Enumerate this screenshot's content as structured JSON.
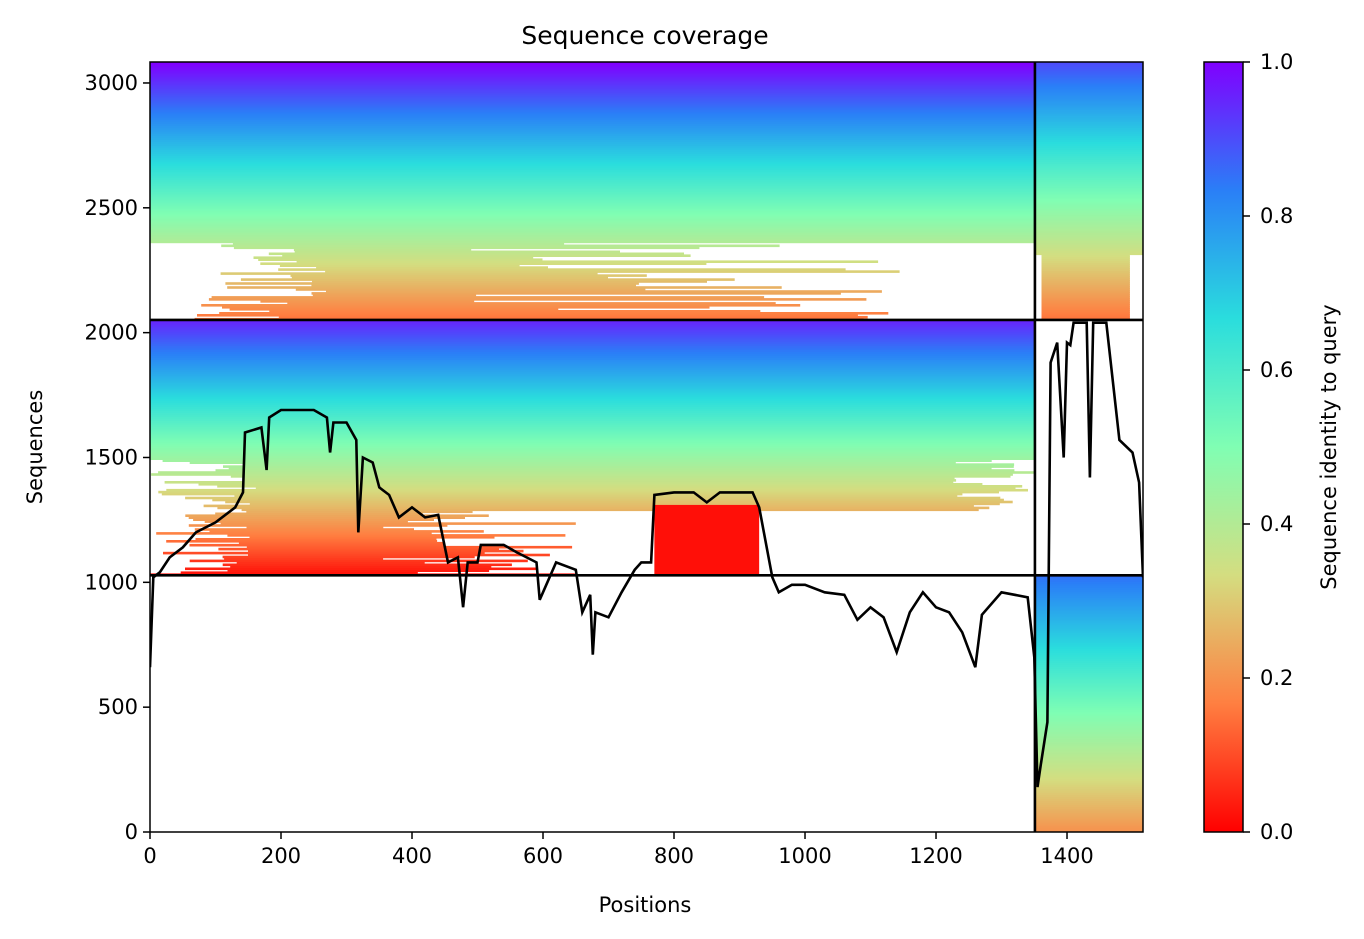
{
  "chart_data": {
    "type": "heatmap",
    "title": "Sequence coverage",
    "xlabel": "Positions",
    "ylabel": "Sequences",
    "colorbar_label": "Sequence identity to query",
    "colormap": "rainbow_r",
    "xlim": [
      0,
      1516
    ],
    "ylim": [
      0,
      3084
    ],
    "x_ticks": [
      0,
      200,
      400,
      600,
      800,
      1000,
      1200,
      1400
    ],
    "y_ticks": [
      0,
      500,
      1000,
      1500,
      2000,
      2500,
      3000
    ],
    "colorbar_range": [
      0.0,
      1.0
    ],
    "colorbar_ticks": [
      "0.0",
      "0.2",
      "0.4",
      "0.6",
      "0.8",
      "1.0"
    ],
    "colorbar_stops": [
      "#ff0000",
      "#ff7f41",
      "#d4dd80",
      "#80feb3",
      "#2adddd",
      "#2a7ff7",
      "#8000ff"
    ],
    "chain_boundaries_x": [
      1351
    ],
    "block_boundaries_y": [
      1028,
      2051
    ],
    "panels": [
      {
        "x": [
          0,
          1351
        ],
        "y": [
          1028,
          2051
        ],
        "identity_range": [
          0.02,
          0.95
        ]
      },
      {
        "x": [
          0,
          1351
        ],
        "y": [
          2051,
          3084
        ],
        "identity_range": [
          0.15,
          1.0
        ]
      },
      {
        "x": [
          1351,
          1516
        ],
        "y": [
          0,
          1028
        ],
        "identity_range": [
          0.2,
          0.85
        ]
      },
      {
        "x": [
          1351,
          1516
        ],
        "y": [
          2051,
          3084
        ],
        "identity_range": [
          0.15,
          0.9
        ]
      }
    ],
    "coverage_line": {
      "name": "coverage",
      "points": [
        [
          0,
          660
        ],
        [
          5,
          1020
        ],
        [
          15,
          1040
        ],
        [
          30,
          1100
        ],
        [
          50,
          1140
        ],
        [
          70,
          1200
        ],
        [
          100,
          1240
        ],
        [
          130,
          1300
        ],
        [
          142,
          1360
        ],
        [
          145,
          1600
        ],
        [
          170,
          1620
        ],
        [
          178,
          1450
        ],
        [
          182,
          1660
        ],
        [
          200,
          1690
        ],
        [
          250,
          1690
        ],
        [
          270,
          1660
        ],
        [
          275,
          1520
        ],
        [
          280,
          1640
        ],
        [
          300,
          1640
        ],
        [
          315,
          1570
        ],
        [
          318,
          1200
        ],
        [
          325,
          1500
        ],
        [
          340,
          1480
        ],
        [
          350,
          1380
        ],
        [
          365,
          1350
        ],
        [
          380,
          1260
        ],
        [
          400,
          1300
        ],
        [
          420,
          1260
        ],
        [
          440,
          1270
        ],
        [
          455,
          1080
        ],
        [
          470,
          1100
        ],
        [
          478,
          900
        ],
        [
          485,
          1080
        ],
        [
          500,
          1080
        ],
        [
          505,
          1150
        ],
        [
          540,
          1150
        ],
        [
          560,
          1120
        ],
        [
          590,
          1080
        ],
        [
          595,
          930
        ],
        [
          600,
          960
        ],
        [
          620,
          1080
        ],
        [
          650,
          1050
        ],
        [
          660,
          880
        ],
        [
          672,
          950
        ],
        [
          676,
          710
        ],
        [
          680,
          880
        ],
        [
          700,
          860
        ],
        [
          720,
          960
        ],
        [
          740,
          1050
        ],
        [
          750,
          1080
        ],
        [
          765,
          1080
        ],
        [
          770,
          1350
        ],
        [
          800,
          1360
        ],
        [
          830,
          1360
        ],
        [
          850,
          1320
        ],
        [
          870,
          1360
        ],
        [
          920,
          1360
        ],
        [
          930,
          1300
        ],
        [
          950,
          1020
        ],
        [
          960,
          960
        ],
        [
          980,
          990
        ],
        [
          1000,
          990
        ],
        [
          1030,
          960
        ],
        [
          1060,
          950
        ],
        [
          1080,
          850
        ],
        [
          1100,
          900
        ],
        [
          1120,
          860
        ],
        [
          1140,
          720
        ],
        [
          1160,
          880
        ],
        [
          1180,
          960
        ],
        [
          1200,
          900
        ],
        [
          1220,
          880
        ],
        [
          1240,
          800
        ],
        [
          1260,
          660
        ],
        [
          1270,
          870
        ],
        [
          1300,
          960
        ],
        [
          1340,
          940
        ],
        [
          1350,
          700
        ],
        [
          1355,
          180
        ],
        [
          1360,
          270
        ],
        [
          1370,
          440
        ],
        [
          1375,
          1880
        ],
        [
          1385,
          1960
        ],
        [
          1395,
          1500
        ],
        [
          1400,
          1960
        ],
        [
          1405,
          1950
        ],
        [
          1410,
          2040
        ],
        [
          1430,
          2040
        ],
        [
          1435,
          1420
        ],
        [
          1440,
          2040
        ],
        [
          1460,
          2040
        ],
        [
          1480,
          1570
        ],
        [
          1500,
          1520
        ],
        [
          1510,
          1400
        ],
        [
          1516,
          1020
        ]
      ]
    }
  }
}
